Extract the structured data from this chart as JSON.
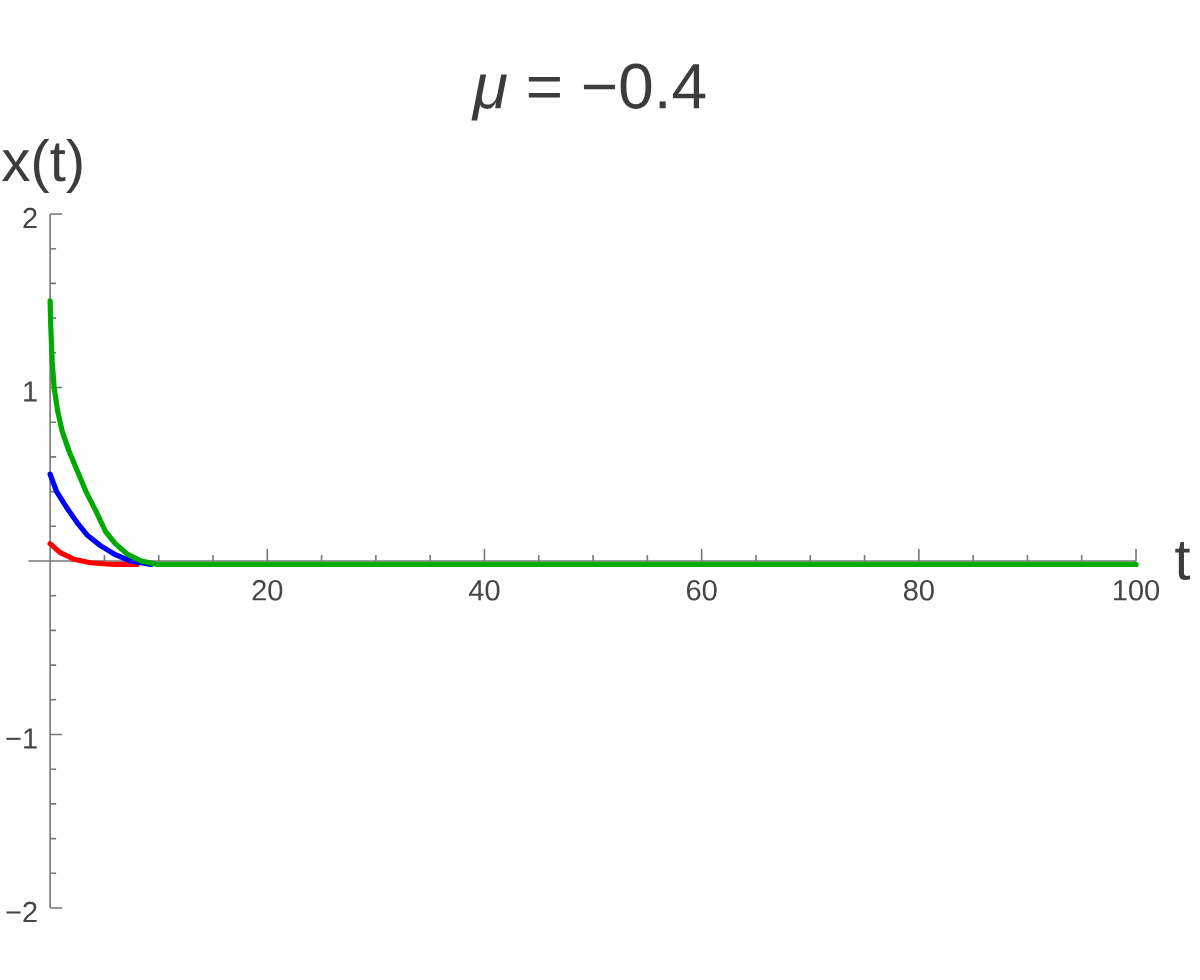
{
  "chart_data": {
    "type": "line",
    "title": "*μ* = −0.4",
    "xlabel": "t",
    "ylabel": "x(t)",
    "xlim": [
      -2,
      100
    ],
    "ylim": [
      -2,
      2
    ],
    "xticks": [
      {
        "value": 5,
        "label": null
      },
      {
        "value": 10,
        "label": null
      },
      {
        "value": 15,
        "label": null
      },
      20,
      {
        "value": 25,
        "label": null
      },
      {
        "value": 30,
        "label": null
      },
      {
        "value": 35,
        "label": null
      },
      40,
      {
        "value": 45,
        "label": null
      },
      {
        "value": 50,
        "label": null
      },
      {
        "value": 55,
        "label": null
      },
      60,
      {
        "value": 65,
        "label": null
      },
      {
        "value": 70,
        "label": null
      },
      {
        "value": 75,
        "label": null
      },
      80,
      {
        "value": 85,
        "label": null
      },
      {
        "value": 90,
        "label": null
      },
      {
        "value": 95,
        "label": null
      },
      100
    ],
    "yticks": [
      {
        "value": -2,
        "label": "−2"
      },
      {
        "value": -1.8,
        "label": null
      },
      {
        "value": -1.6,
        "label": null
      },
      {
        "value": -1.4,
        "label": null
      },
      {
        "value": -1.2,
        "label": null
      },
      {
        "value": -1,
        "label": "−1"
      },
      {
        "value": -0.8,
        "label": null
      },
      {
        "value": -0.6,
        "label": null
      },
      {
        "value": -0.4,
        "label": null
      },
      {
        "value": -0.2,
        "label": null
      },
      {
        "value": 0.2,
        "label": null
      },
      {
        "value": 0.4,
        "label": null
      },
      {
        "value": 0.6,
        "label": null
      },
      {
        "value": 0.8,
        "label": null
      },
      1,
      {
        "value": 1.2,
        "label": null
      },
      {
        "value": 1.4,
        "label": null
      },
      {
        "value": 1.6,
        "label": null
      },
      {
        "value": 1.8,
        "label": null
      },
      2
    ],
    "series": [
      {
        "color": "#ff0000",
        "x": [
          0,
          0.9,
          2.2,
          3.7,
          5.9,
          8
        ],
        "values": [
          0.1,
          0.05,
          0.01,
          -0.01,
          -0.02,
          -0.02
        ]
      },
      {
        "color": "#0000ff",
        "x": [
          0,
          0.6,
          1.5,
          2.5,
          3.4,
          4.6,
          5.9,
          7.4,
          9.3
        ],
        "values": [
          0.5,
          0.4,
          0.31,
          0.22,
          0.15,
          0.09,
          0.04,
          0,
          -0.02
        ]
      },
      {
        "color": "#00aa00",
        "x": [
          0,
          0.06,
          0.19,
          0.37,
          0.68,
          1.1,
          1.7,
          2.5,
          3.3,
          4.2,
          5.1,
          6,
          7.1,
          8.4,
          9.9,
          12,
          20,
          40,
          60,
          80,
          100
        ],
        "values": [
          1.5,
          1.35,
          1.15,
          1,
          0.87,
          0.75,
          0.64,
          0.52,
          0.4,
          0.29,
          0.17,
          0.1,
          0.04,
          0,
          -0.02,
          -0.02,
          -0.02,
          -0.02,
          -0.02,
          -0.02,
          -0.02
        ]
      }
    ]
  }
}
